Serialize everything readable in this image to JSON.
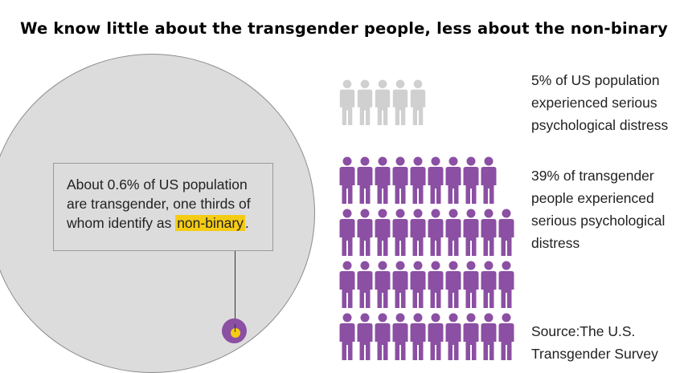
{
  "title": "We know little about the transgender people, less about the non-binary",
  "callout": {
    "text_before": "About 0.6% of US population are transgender, one thirds of whom identify as ",
    "highlight": "non-binary",
    "text_after": "."
  },
  "stats": {
    "general": "5% of US population experienced serious psychological distress",
    "transgender": "39% of transgender people experienced serious psychological distress",
    "source": "Source:The U.S. Transgender Survey"
  },
  "colors": {
    "gray_person": "#d0d0d0",
    "purple_person": "#8b4fa3",
    "highlight": "#f5cc14",
    "circle_fill": "#dcdcdc"
  },
  "pictograms": {
    "general_count": 5,
    "transgender_count": 39
  }
}
